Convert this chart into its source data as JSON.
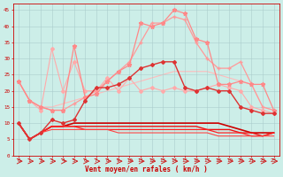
{
  "xlabel": "Vent moyen/en rafales ( km/h )",
  "background_color": "#cceee8",
  "grid_color": "#aacccc",
  "x": [
    0,
    1,
    2,
    3,
    4,
    5,
    6,
    7,
    8,
    9,
    10,
    11,
    12,
    13,
    14,
    15,
    16,
    17,
    18,
    19,
    20,
    21,
    22,
    23
  ],
  "series": [
    {
      "y": [
        23,
        17,
        15,
        15,
        16,
        17,
        18,
        19,
        20,
        21,
        22,
        23,
        24,
        25,
        26,
        26,
        26,
        26,
        25,
        24,
        23,
        22,
        15,
        14
      ],
      "color": "#ffbbbb",
      "lw": 0.8,
      "marker": null,
      "ms": 0,
      "zorder": 1
    },
    {
      "y": [
        23,
        17,
        14,
        33,
        20,
        29,
        20,
        20,
        24,
        20,
        24,
        20,
        21,
        20,
        21,
        20,
        20,
        21,
        22,
        21,
        20,
        15,
        14,
        13
      ],
      "color": "#ffaaaa",
      "lw": 0.8,
      "marker": "D",
      "ms": 2.0,
      "zorder": 2
    },
    {
      "y": [
        23,
        17,
        15,
        14,
        14,
        16,
        18,
        20,
        23,
        26,
        29,
        35,
        41,
        41,
        43,
        42,
        35,
        30,
        27,
        27,
        29,
        22,
        15,
        14
      ],
      "color": "#ff9999",
      "lw": 0.9,
      "marker": "+",
      "ms": 3.0,
      "zorder": 3
    },
    {
      "y": [
        23,
        17,
        15,
        14,
        14,
        34,
        18,
        19,
        23,
        26,
        28,
        41,
        40,
        41,
        45,
        44,
        36,
        35,
        22,
        22,
        23,
        22,
        22,
        14
      ],
      "color": "#ff8888",
      "lw": 0.9,
      "marker": "*",
      "ms": 3.5,
      "zorder": 3
    },
    {
      "y": [
        10,
        5,
        7,
        11,
        10,
        11,
        17,
        21,
        21,
        22,
        24,
        27,
        28,
        29,
        29,
        21,
        20,
        21,
        20,
        20,
        15,
        14,
        13,
        13
      ],
      "color": "#dd3333",
      "lw": 1.0,
      "marker": "D",
      "ms": 2.0,
      "zorder": 4
    },
    {
      "y": [
        10,
        5,
        7,
        9,
        9,
        10,
        10,
        10,
        10,
        10,
        10,
        10,
        10,
        10,
        10,
        10,
        10,
        10,
        10,
        9,
        8,
        7,
        7,
        7
      ],
      "color": "#cc0000",
      "lw": 1.2,
      "marker": null,
      "ms": 0,
      "zorder": 2
    },
    {
      "y": [
        10,
        5,
        7,
        9,
        9,
        9,
        9,
        9,
        9,
        9,
        9,
        9,
        9,
        9,
        9,
        9,
        9,
        8,
        8,
        8,
        7,
        7,
        6,
        7
      ],
      "color": "#ee1111",
      "lw": 1.0,
      "marker": null,
      "ms": 0,
      "zorder": 2
    },
    {
      "y": [
        10,
        5,
        7,
        9,
        9,
        9,
        8,
        8,
        8,
        8,
        8,
        8,
        8,
        8,
        8,
        8,
        8,
        8,
        7,
        7,
        7,
        6,
        6,
        7
      ],
      "color": "#ff2222",
      "lw": 0.9,
      "marker": null,
      "ms": 0,
      "zorder": 2
    },
    {
      "y": [
        10,
        5,
        7,
        8,
        8,
        8,
        8,
        8,
        8,
        7,
        7,
        7,
        7,
        7,
        7,
        7,
        7,
        7,
        6,
        6,
        6,
        6,
        6,
        6
      ],
      "color": "#ff4444",
      "lw": 0.8,
      "marker": null,
      "ms": 0,
      "zorder": 2
    }
  ],
  "ylim": [
    0,
    47
  ],
  "yticks": [
    0,
    5,
    10,
    15,
    20,
    25,
    30,
    35,
    40,
    45
  ],
  "figsize": [
    3.2,
    2.0
  ],
  "dpi": 100
}
